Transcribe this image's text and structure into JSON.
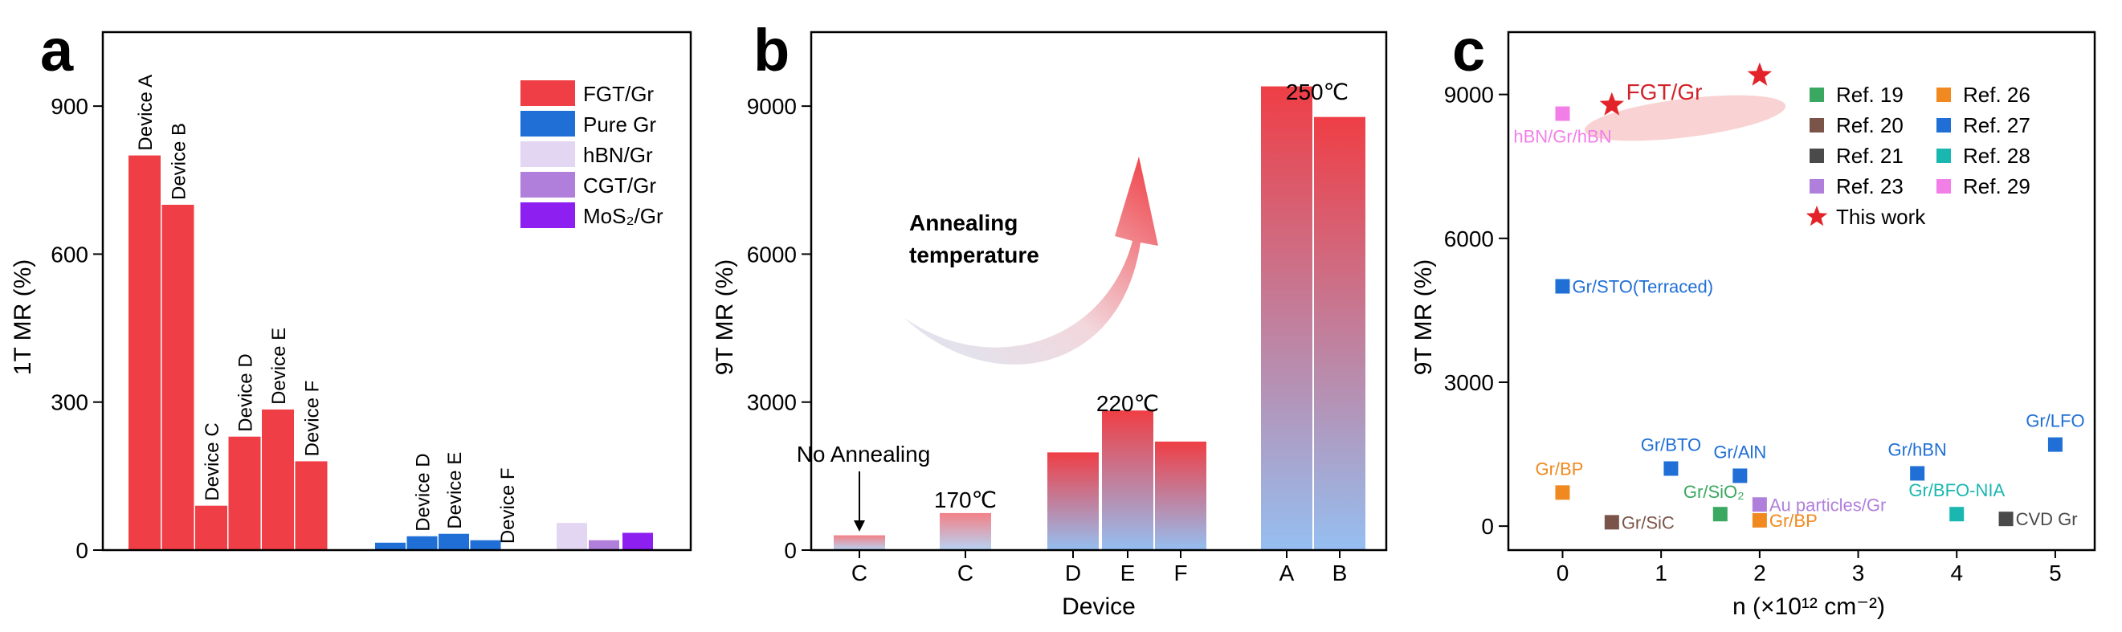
{
  "panels": {
    "a": {
      "letter": "a",
      "chart_data": {
        "type": "bar",
        "ylabel": "1T MR (%)",
        "ylim": [
          0,
          1050
        ],
        "yticks": [
          0,
          300,
          600,
          900
        ],
        "legend_position": "top-right",
        "series": [
          {
            "name": "FGT/Gr",
            "color": "#ef3e45",
            "values": [
              800,
              700,
              90,
              230,
              285,
              180
            ],
            "labels": [
              "Device A",
              "Device B",
              "Device C",
              "Device D",
              "Device E",
              "Device F"
            ]
          },
          {
            "name": "Pure Gr",
            "color": "#1f6fd6",
            "values": [
              15,
              28,
              33,
              20
            ],
            "labels": [
              "",
              "Device D",
              "Device E",
              ""
            ]
          },
          {
            "name": "hBN/Gr",
            "color": "#e3d6f2",
            "values": [
              55
            ],
            "labels": [
              ""
            ]
          },
          {
            "name": "CGT/Gr",
            "color": "#b07fdc",
            "values": [
              20
            ],
            "labels": [
              ""
            ]
          },
          {
            "name": "MoS₂/Gr",
            "color": "#8d1ff0",
            "values": [
              35
            ],
            "labels": [
              ""
            ]
          }
        ],
        "extra_labels": [
          {
            "text": "Device F",
            "value": 3
          }
        ]
      }
    },
    "b": {
      "letter": "b",
      "chart_data": {
        "type": "bar",
        "xlabel": "Device",
        "ylabel": "9T MR (%)",
        "ylim": [
          0,
          10500
        ],
        "yticks": [
          0,
          3000,
          6000,
          9000
        ],
        "categories": [
          "C",
          "C",
          "D",
          "E",
          "F",
          "A",
          "B"
        ],
        "values": [
          300,
          750,
          1980,
          2830,
          2200,
          9400,
          8780
        ],
        "groups": [
          {
            "label": "No Annealing"
          },
          {
            "label": "170℃"
          },
          {
            "label": "220℃"
          },
          {
            "label": "250℃"
          }
        ],
        "arrow_text": [
          "Annealing",
          "temperature"
        ],
        "colors": {
          "top": "#ef3e45",
          "bottom": "#8fbcf0",
          "arrow_top": "#ef3e45",
          "arrow_bottom": "#dde7f3"
        }
      }
    },
    "c": {
      "letter": "c",
      "chart_data": {
        "type": "scatter",
        "xlabel": "n (×10¹² cm⁻²)",
        "ylabel": "9T MR (%)",
        "xlim": [
          -0.55,
          5.4
        ],
        "ylim": [
          -500,
          10300
        ],
        "xticks": [
          0,
          1,
          2,
          3,
          4,
          5
        ],
        "yticks": [
          0,
          3000,
          6000,
          9000
        ],
        "legend_position": "top-right",
        "series": [
          {
            "name": "Ref. 19",
            "color": "#3aa860",
            "marker": "square",
            "points": [
              {
                "x": 1.6,
                "y": 250,
                "label": "Gr/SiO₂"
              }
            ]
          },
          {
            "name": "Ref. 20",
            "color": "#7b5449",
            "marker": "square",
            "points": [
              {
                "x": 0.5,
                "y": 80,
                "label": "Gr/SiC"
              }
            ]
          },
          {
            "name": "Ref. 21",
            "color": "#4a4a4a",
            "marker": "square",
            "points": [
              {
                "x": 4.5,
                "y": 150,
                "label": "CVD Gr"
              }
            ]
          },
          {
            "name": "Ref. 23",
            "color": "#b07fdc",
            "marker": "square",
            "points": [
              {
                "x": 2.0,
                "y": 450,
                "label": "Au particles/Gr"
              }
            ]
          },
          {
            "name": "Ref. 26",
            "color": "#f08a20",
            "marker": "square",
            "points": [
              {
                "x": 0.0,
                "y": 700,
                "label": "Gr/BP"
              },
              {
                "x": 2.0,
                "y": 120,
                "label": "Gr/BP"
              }
            ]
          },
          {
            "name": "Ref. 27",
            "color": "#1f6fd6",
            "marker": "square",
            "points": [
              {
                "x": 0.0,
                "y": 5000,
                "label": "Gr/STO(Terraced)"
              },
              {
                "x": 1.1,
                "y": 1200,
                "label": "Gr/BTO"
              },
              {
                "x": 1.8,
                "y": 1050,
                "label": "Gr/AlN"
              },
              {
                "x": 3.6,
                "y": 1100,
                "label": "Gr/hBN"
              },
              {
                "x": 5.0,
                "y": 1700,
                "label": "Gr/LFO"
              }
            ]
          },
          {
            "name": "Ref. 28",
            "color": "#1ab7b0",
            "marker": "square",
            "points": [
              {
                "x": 4.0,
                "y": 250,
                "label": "Gr/BFO-NIA"
              }
            ]
          },
          {
            "name": "Ref. 29",
            "color": "#f27fe8",
            "marker": "square",
            "points": [
              {
                "x": 0.0,
                "y": 8600,
                "label": "hBN/Gr/hBN"
              }
            ]
          },
          {
            "name": "This work",
            "color": "#e2242a",
            "marker": "star",
            "points": [
              {
                "x": 0.5,
                "y": 8780
              },
              {
                "x": 2.0,
                "y": 9400
              }
            ]
          }
        ],
        "annotation": "FGT/Gr"
      }
    }
  }
}
